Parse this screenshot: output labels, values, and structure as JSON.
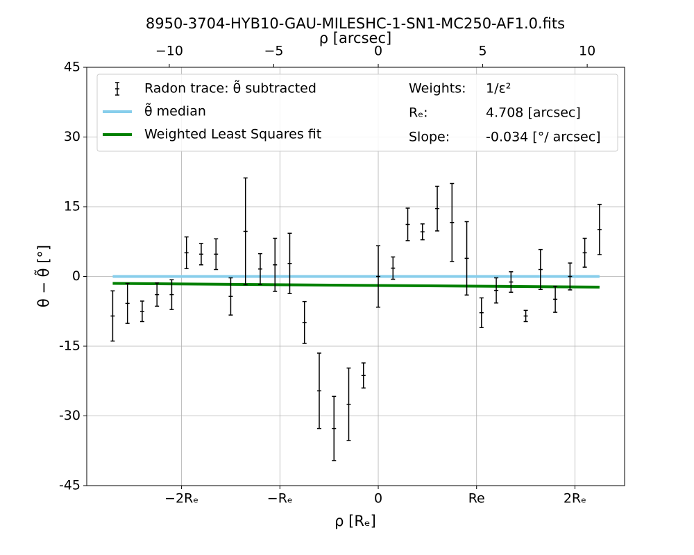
{
  "chart_data": {
    "type": "errorbar",
    "title": "8950-3704-HYB10-GAU-MILESHC-1-SN1-MC250-AF1.0.fits",
    "xlabel": "ρ [Rₑ]",
    "x2label": "ρ [arcsec]",
    "ylabel": "θ − θ̃ [°]",
    "xlim": [
      -2.964,
      2.505
    ],
    "xticks": [
      {
        "value": -2,
        "label": "−2Rₑ"
      },
      {
        "value": -1,
        "label": "−Rₑ"
      },
      0,
      {
        "value": 1,
        "label": "Re"
      },
      {
        "value": 2,
        "label": "2Rₑ"
      }
    ],
    "x2lim": [
      -13.95,
      11.79
    ],
    "x2ticks": [
      {
        "value": -10,
        "label": "−10"
      },
      {
        "value": -5,
        "label": "−5"
      },
      0,
      5,
      10
    ],
    "ylim": [
      -45,
      45
    ],
    "yticks": [
      45,
      30,
      15,
      0,
      -15,
      -30,
      -45
    ],
    "grid": true,
    "legend": "upper left",
    "series": [
      {
        "name": "Radon trace: θ̃ subtracted",
        "kind": "errorbar",
        "color": "#000000",
        "x": [
          -2.7,
          -2.55,
          -2.4,
          -2.25,
          -2.1,
          -1.95,
          -1.8,
          -1.65,
          -1.5,
          -1.35,
          -1.2,
          -1.05,
          -0.9,
          -0.75,
          -0.6,
          -0.45,
          -0.3,
          -0.15,
          0,
          0.15,
          0.3,
          0.45,
          0.6,
          0.75,
          0.9,
          1.05,
          1.2,
          1.35,
          1.5,
          1.65,
          1.8,
          1.95,
          2.1,
          2.25
        ],
        "values": [
          -8.5,
          -5.8,
          -7.5,
          -3.9,
          -3.9,
          5.1,
          4.8,
          4.8,
          -4.3,
          9.7,
          1.6,
          2.5,
          2.8,
          -9.9,
          -24.6,
          -32.7,
          -27.5,
          -21.3,
          0.0,
          1.8,
          11.2,
          9.6,
          14.6,
          11.6,
          3.9,
          -7.8,
          -3.0,
          -1.2,
          -8.5,
          1.5,
          -4.9,
          0.0,
          5.1,
          10.1
        ],
        "errors": [
          5.4,
          4.3,
          2.2,
          2.5,
          3.2,
          3.4,
          2.3,
          3.3,
          4.0,
          11.5,
          3.3,
          5.7,
          6.5,
          4.5,
          8.1,
          6.9,
          7.8,
          2.7,
          6.6,
          2.4,
          3.5,
          1.7,
          4.8,
          8.4,
          7.9,
          3.2,
          2.7,
          2.2,
          1.2,
          4.3,
          2.8,
          2.9,
          3.1,
          5.4
        ]
      },
      {
        "name": "θ̃ median",
        "kind": "line",
        "color": "#87ceeb",
        "x": [
          -2.7,
          2.25
        ],
        "values": [
          0,
          0
        ]
      },
      {
        "name": "Weighted Least Squares fit",
        "kind": "line",
        "color": "#008000",
        "x": [
          -2.7,
          2.25
        ],
        "values": [
          -1.5,
          -2.3
        ]
      }
    ],
    "annotations": [
      {
        "label": "Weights:",
        "value": "1/ε²"
      },
      {
        "label": "Rₑ:",
        "value": "4.708 [arcsec]"
      },
      {
        "label": "Slope:",
        "value": "-0.034 [°/ arcsec]"
      }
    ]
  }
}
